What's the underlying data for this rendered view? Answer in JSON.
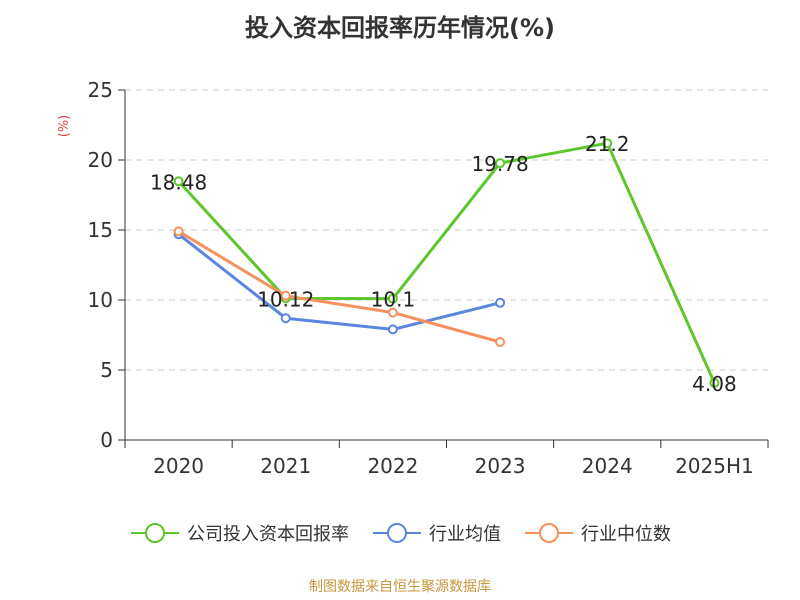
{
  "chart_data": {
    "type": "line",
    "title": "投入资本回报率历年情况(%)",
    "ylabel": "(%)",
    "xlabel": "",
    "categories": [
      "2020",
      "2021",
      "2022",
      "2023",
      "2024",
      "2025H1"
    ],
    "ylim": [
      0,
      25
    ],
    "yticks": [
      0,
      5,
      10,
      15,
      20,
      25
    ],
    "grid": true,
    "legend_position": "bottom",
    "series": [
      {
        "name": "公司投入资本回报率",
        "color": "#5cc72c",
        "values": [
          18.48,
          10.12,
          10.1,
          19.78,
          21.2,
          4.08
        ],
        "labels": [
          "18.48",
          "10.12",
          "10.1",
          "19.78",
          "21.2",
          "4.08"
        ]
      },
      {
        "name": "行业均值",
        "color": "#5b86e0",
        "values": [
          14.7,
          8.7,
          7.9,
          9.8,
          null,
          null
        ]
      },
      {
        "name": "行业中位数",
        "color": "#f5915c",
        "values": [
          14.9,
          10.3,
          9.1,
          7.0,
          null,
          null
        ]
      }
    ]
  },
  "source": "制图数据来自恒生聚源数据库"
}
